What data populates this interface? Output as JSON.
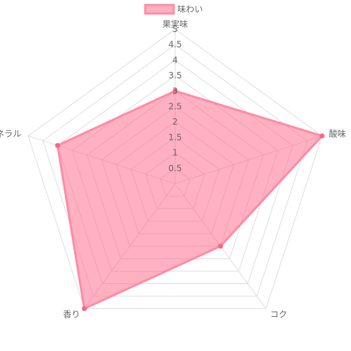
{
  "chart_data": {
    "type": "radar",
    "labels": [
      "果実味",
      "酸味",
      "コク",
      "香り",
      "ミネラル"
    ],
    "series": [
      {
        "name": "味わい",
        "values": [
          3,
          5,
          2.5,
          5,
          4
        ]
      }
    ],
    "r_range": [
      0,
      5
    ],
    "ticks": [
      "0.5",
      "1",
      "1.5",
      "2",
      "2.5",
      "3",
      "3.5",
      "4",
      "4.5",
      "5"
    ],
    "legend_position": "top",
    "grid": true,
    "colors": {
      "fill": "rgba(255,99,132,0.5)",
      "stroke": "#ff8aa5",
      "point": "#ff6384",
      "grid": "#dddddd",
      "text": "#666666"
    }
  }
}
